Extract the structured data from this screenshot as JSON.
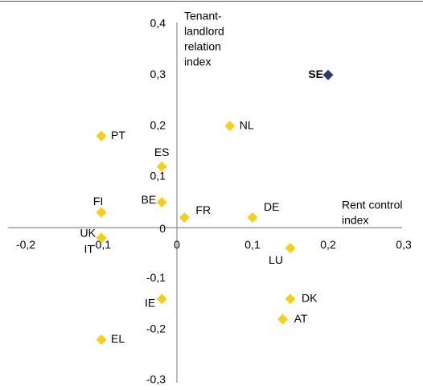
{
  "chart_data": {
    "type": "scatter",
    "x_label": [
      "Rent control",
      "index"
    ],
    "y_label": [
      "Tenant-",
      "landlord",
      "relation",
      "index"
    ],
    "labels": [
      "SE",
      "NL",
      "PT",
      "ES",
      "BE",
      "FI",
      "FR",
      "DE",
      "UK",
      "IT",
      "LU",
      "IE",
      "DK",
      "AT",
      "EL"
    ],
    "x": [
      0.2,
      0.07,
      -0.1,
      -0.02,
      -0.02,
      -0.1,
      0.01,
      0.1,
      -0.1,
      -0.1,
      0.15,
      -0.02,
      0.15,
      0.14,
      -0.1
    ],
    "y": [
      0.3,
      0.2,
      0.18,
      0.12,
      0.05,
      0.03,
      0.02,
      0.02,
      -0.02,
      -0.02,
      -0.04,
      -0.14,
      -0.14,
      -0.18,
      -0.22
    ],
    "colors": [
      "#2e3a6e",
      "#f5cf1b",
      "#f5cf1b",
      "#f5cf1b",
      "#f5cf1b",
      "#f5cf1b",
      "#f5cf1b",
      "#f5cf1b",
      "#f5cf1b",
      "#f5cf1b",
      "#f5cf1b",
      "#f5cf1b",
      "#f5cf1b",
      "#f5cf1b",
      "#f5cf1b"
    ],
    "xlim": [
      -0.2,
      0.3
    ],
    "ylim": [
      -0.3,
      0.4
    ],
    "xticks": [
      {
        "value": -0.2,
        "label": "-0,2"
      },
      {
        "value": -0.1,
        "label": "-0,1"
      },
      {
        "value": 0,
        "label": "0"
      },
      {
        "value": 0.1,
        "label": "0,1"
      },
      {
        "value": 0.2,
        "label": "0,2"
      },
      {
        "value": 0.3,
        "label": "0,3"
      }
    ],
    "yticks": [
      {
        "value": -0.3,
        "label": "-0,3"
      },
      {
        "value": -0.2,
        "label": "-0,2"
      },
      {
        "value": -0.1,
        "label": "-0,1"
      },
      {
        "value": 0,
        "label": "0"
      },
      {
        "value": 0.1,
        "label": "0,1"
      },
      {
        "value": 0.2,
        "label": "0,2"
      },
      {
        "value": 0.3,
        "label": "0,3"
      },
      {
        "value": 0.4,
        "label": "0,4"
      }
    ]
  }
}
